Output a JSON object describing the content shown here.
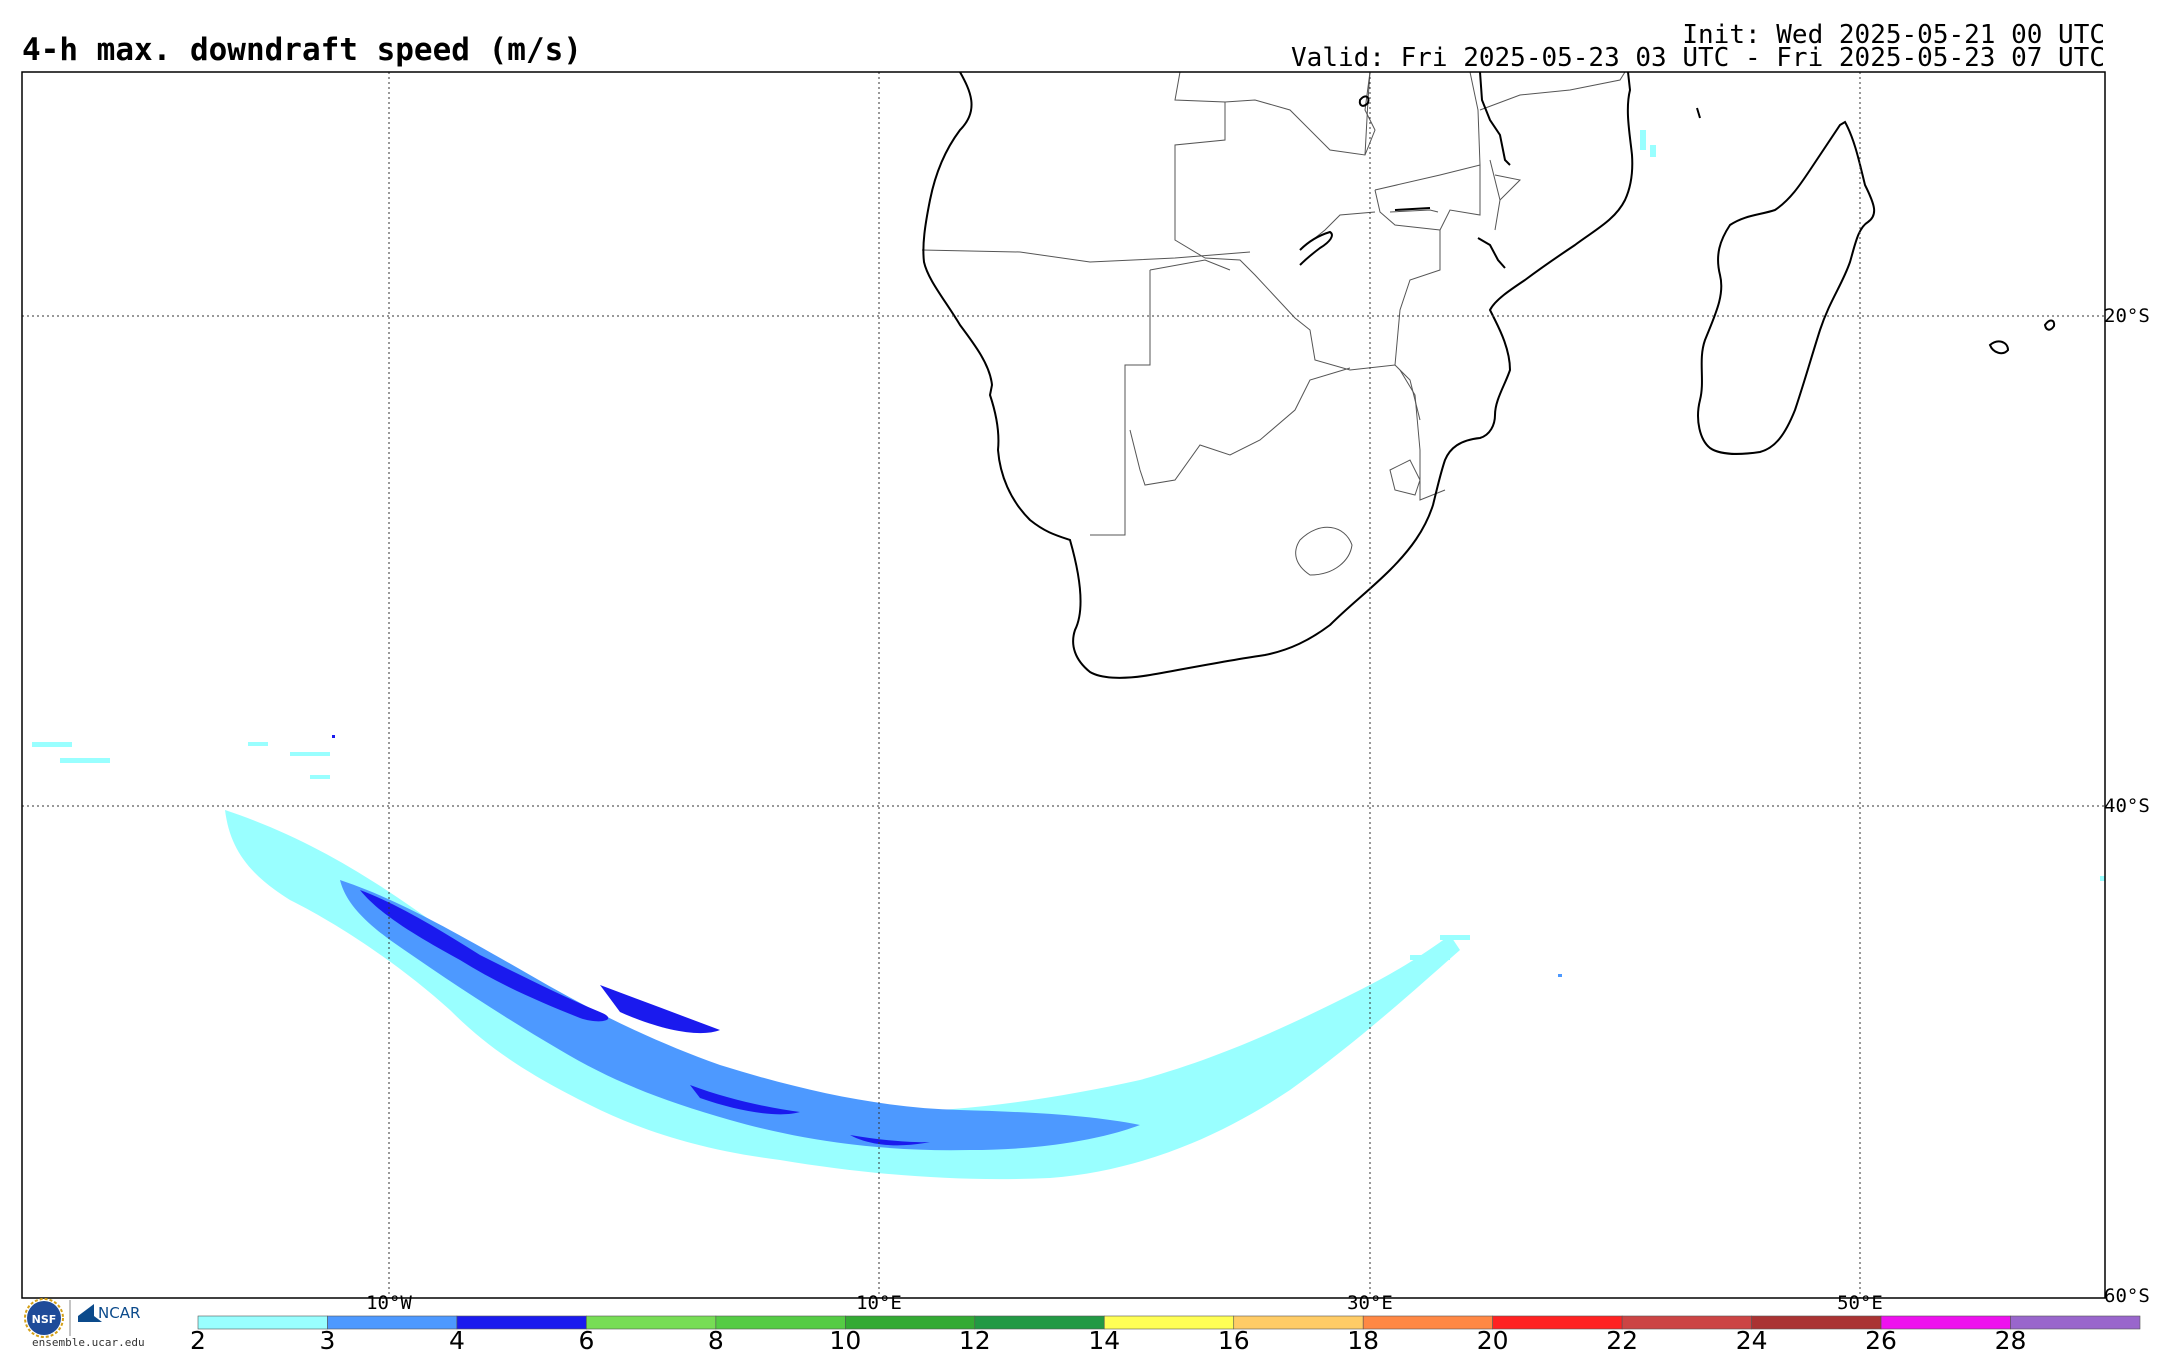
{
  "header": {
    "title": "4-h max. downdraft speed (m/s)",
    "init": "Init: Wed 2025-05-21 00 UTC",
    "valid": "Valid: Fri 2025-05-23 03 UTC - Fri 2025-05-23 07 UTC"
  },
  "map": {
    "lon_labels": [
      "10°W",
      "10°E",
      "30°E",
      "50°E"
    ],
    "lat_labels": [
      "20°S",
      "40°S",
      "60°S"
    ],
    "lon_range": [
      -25,
      60
    ],
    "lat_range": [
      -10,
      -60
    ],
    "gridlines": "dotted"
  },
  "colorbar": {
    "unit": "m/s",
    "levels": [
      "2",
      "3",
      "4",
      "6",
      "8",
      "10",
      "12",
      "14",
      "16",
      "18",
      "20",
      "22",
      "24",
      "26",
      "28"
    ],
    "colors": [
      "#99ffff",
      "#4d99ff",
      "#1a1aee",
      "#77dd55",
      "#55cc44",
      "#33aa33",
      "#229944",
      "#ffff55",
      "#ffcc66",
      "#ff8844",
      "#ff2222",
      "#cc4444",
      "#aa3333",
      "#ee11ee",
      "#9966cc"
    ]
  },
  "logo": {
    "org1": "NSF",
    "org2": "NCAR",
    "website": "ensemble.ucar.edu"
  },
  "icons": [
    "nsf-logo-icon",
    "ncar-logo-icon"
  ]
}
